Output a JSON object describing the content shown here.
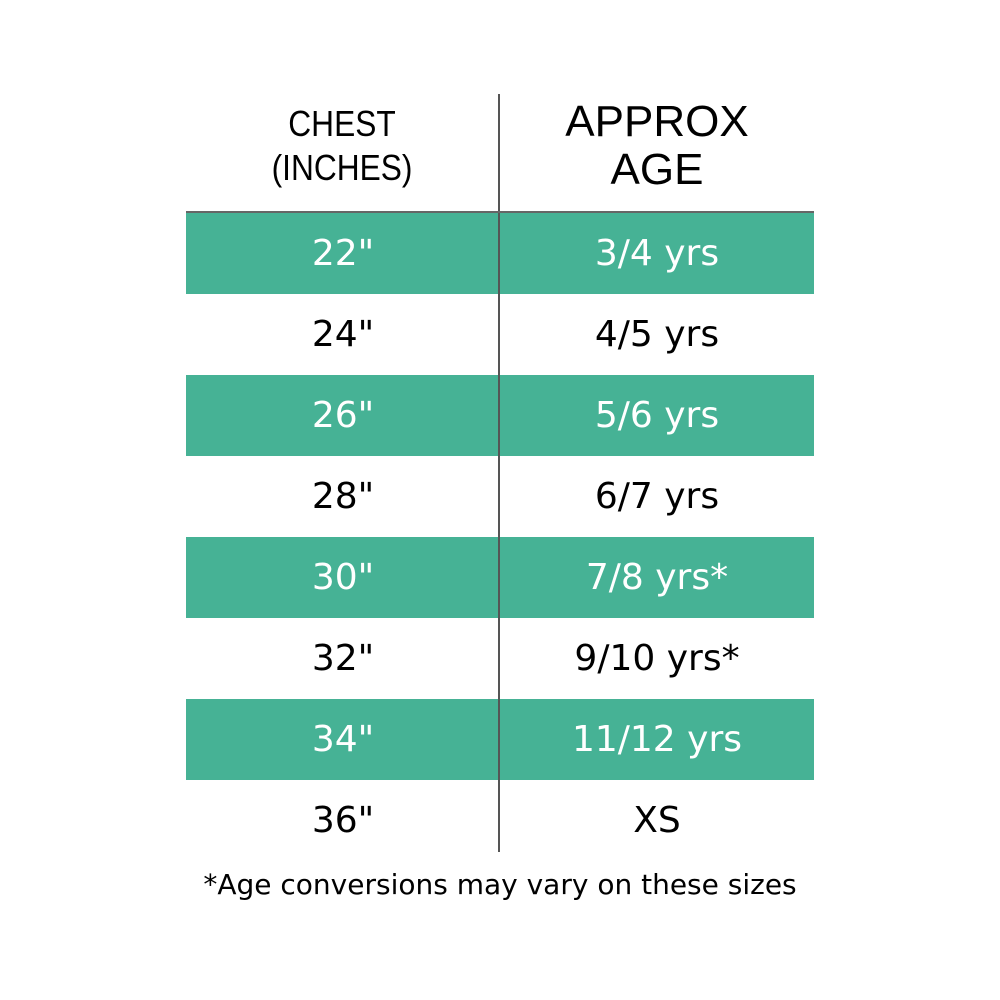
{
  "header": {
    "chest_line1": "CHEST",
    "chest_line2": "(INCHES)",
    "age_line1": "APPROX",
    "age_line2": "AGE"
  },
  "rows": [
    {
      "chest": "22\"",
      "age": "3/4 yrs"
    },
    {
      "chest": "24\"",
      "age": "4/5 yrs"
    },
    {
      "chest": "26\"",
      "age": "5/6 yrs"
    },
    {
      "chest": "28\"",
      "age": "6/7 yrs"
    },
    {
      "chest": "30\"",
      "age": "7/8 yrs*"
    },
    {
      "chest": "32\"",
      "age": "9/10 yrs*"
    },
    {
      "chest": "34\"",
      "age": "11/12 yrs"
    },
    {
      "chest": "36\"",
      "age": "XS"
    }
  ],
  "footnote": "*Age conversions may vary on these sizes",
  "colors": {
    "stripe": "#46b295",
    "stripe_text": "#ffffff"
  }
}
